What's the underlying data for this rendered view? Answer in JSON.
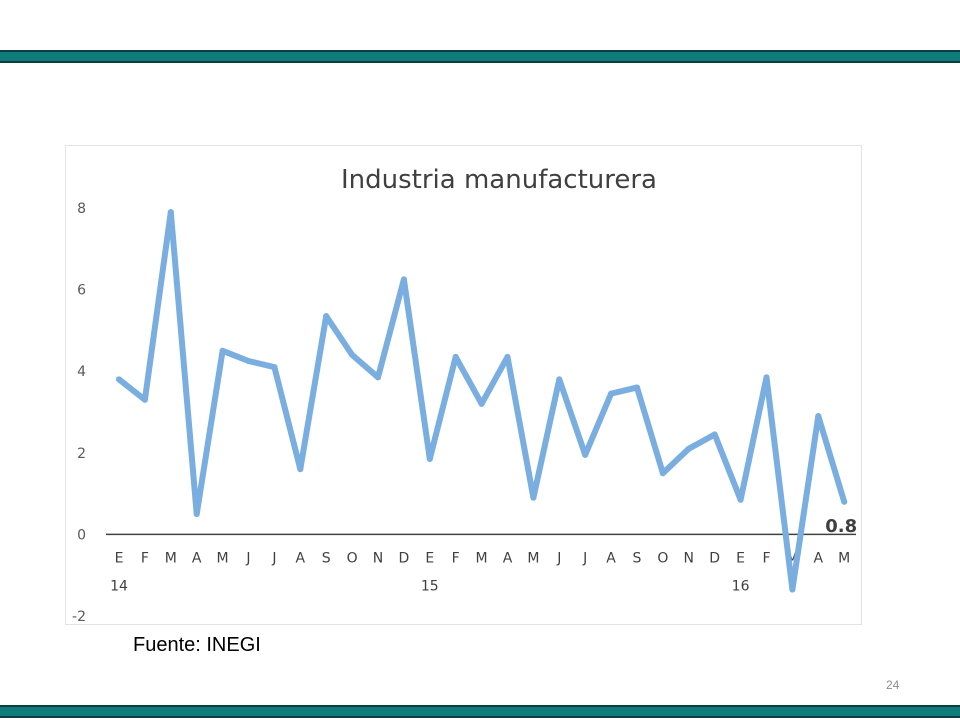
{
  "slide": {
    "source": "Fuente: INEGI",
    "page_number": "24",
    "colors": {
      "band": "#0f7b7b",
      "series": "#7aaee0",
      "axis": "#404040"
    }
  },
  "chart_data": {
    "type": "line",
    "title": "Industria manufacturera",
    "xlabel": "",
    "ylabel": "",
    "ylim": [
      -2,
      8
    ],
    "yticks": [
      -2,
      0,
      2,
      4,
      6,
      8
    ],
    "grid": false,
    "legend": "none",
    "categories": [
      "E",
      "F",
      "M",
      "A",
      "M",
      "J",
      "J",
      "A",
      "S",
      "O",
      "N",
      "D",
      "E",
      "F",
      "M",
      "A",
      "M",
      "J",
      "J",
      "A",
      "S",
      "O",
      "N",
      "D",
      "E",
      "F",
      "M",
      "A",
      "M"
    ],
    "year_labels": [
      {
        "index": 0,
        "label": "14"
      },
      {
        "index": 12,
        "label": "15"
      },
      {
        "index": 24,
        "label": "16"
      }
    ],
    "series": [
      {
        "values": [
          3.8,
          3.3,
          7.9,
          0.5,
          4.5,
          4.25,
          4.1,
          1.6,
          5.35,
          4.4,
          3.85,
          6.25,
          1.85,
          4.35,
          3.2,
          4.35,
          0.9,
          3.8,
          1.95,
          3.45,
          3.6,
          1.5,
          2.1,
          2.45,
          0.85,
          3.85,
          -1.35,
          2.9,
          0.8
        ]
      }
    ],
    "end_label": "0.8"
  }
}
